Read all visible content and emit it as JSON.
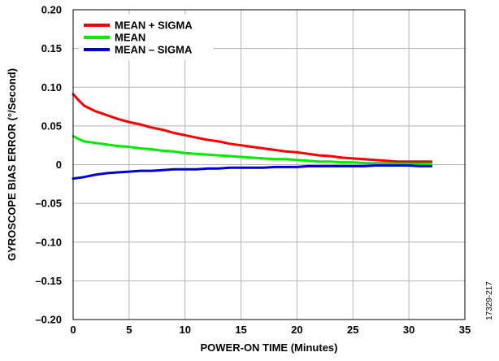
{
  "chart_data": {
    "type": "line",
    "xlabel": "POWER-ON TIME (Minutes)",
    "ylabel": "GYROSCOPE BIAS ERROR (°/Second)",
    "xlim": [
      0,
      35
    ],
    "ylim": [
      -0.2,
      0.2
    ],
    "xticks": [
      0,
      5,
      10,
      15,
      20,
      25,
      30,
      35
    ],
    "yticks": [
      0.2,
      0.15,
      0.1,
      0.05,
      0,
      -0.05,
      -0.1,
      -0.15,
      -0.2
    ],
    "xtick_labels": [
      "0",
      "5",
      "10",
      "15",
      "20",
      "25",
      "30",
      "35"
    ],
    "ytick_labels": [
      "0.20",
      "0.15",
      "0.10",
      "0.05",
      "0",
      "–0.05",
      "–0.10",
      "–0.15",
      "–0.20"
    ],
    "grid": true,
    "legend_position": "top-left",
    "series": [
      {
        "name": "MEAN + SIGMA",
        "color": "#ff0000",
        "x": [
          0,
          0.5,
          1,
          2,
          3,
          4,
          5,
          6,
          7,
          8,
          9,
          10,
          11,
          12,
          13,
          14,
          15,
          16,
          17,
          18,
          19,
          20,
          21,
          22,
          23,
          24,
          25,
          26,
          27,
          28,
          29,
          30,
          31,
          32
        ],
        "y": [
          0.091,
          0.083,
          0.076,
          0.069,
          0.064,
          0.059,
          0.055,
          0.052,
          0.048,
          0.045,
          0.041,
          0.038,
          0.035,
          0.032,
          0.03,
          0.027,
          0.025,
          0.023,
          0.021,
          0.019,
          0.017,
          0.016,
          0.014,
          0.012,
          0.011,
          0.009,
          0.008,
          0.007,
          0.006,
          0.005,
          0.004,
          0.004,
          0.004,
          0.004
        ]
      },
      {
        "name": "MEAN",
        "color": "#00ee00",
        "x": [
          0,
          0.5,
          1,
          2,
          3,
          4,
          5,
          6,
          7,
          8,
          9,
          10,
          11,
          12,
          13,
          14,
          15,
          16,
          17,
          18,
          19,
          20,
          21,
          22,
          23,
          24,
          25,
          26,
          27,
          28,
          29,
          30,
          31,
          32
        ],
        "y": [
          0.037,
          0.033,
          0.03,
          0.028,
          0.026,
          0.024,
          0.023,
          0.021,
          0.02,
          0.018,
          0.017,
          0.015,
          0.014,
          0.013,
          0.012,
          0.011,
          0.01,
          0.009,
          0.008,
          0.007,
          0.007,
          0.006,
          0.005,
          0.004,
          0.004,
          0.003,
          0.003,
          0.002,
          0.002,
          0.002,
          0.001,
          0.001,
          0.001,
          0.001
        ]
      },
      {
        "name": "MEAN – SIGMA",
        "color": "#0000dd",
        "x": [
          0,
          0.5,
          1,
          2,
          3,
          4,
          5,
          6,
          7,
          8,
          9,
          10,
          11,
          12,
          13,
          14,
          15,
          16,
          17,
          18,
          19,
          20,
          21,
          22,
          23,
          24,
          25,
          26,
          27,
          28,
          29,
          30,
          31,
          32
        ],
        "y": [
          -0.018,
          -0.017,
          -0.016,
          -0.013,
          -0.011,
          -0.01,
          -0.009,
          -0.008,
          -0.008,
          -0.007,
          -0.006,
          -0.006,
          -0.006,
          -0.005,
          -0.005,
          -0.004,
          -0.004,
          -0.004,
          -0.004,
          -0.003,
          -0.003,
          -0.003,
          -0.002,
          -0.002,
          -0.002,
          -0.002,
          -0.002,
          -0.002,
          -0.001,
          -0.001,
          -0.001,
          -0.001,
          -0.002,
          -0.002
        ]
      }
    ]
  },
  "figure_id": "17329-217"
}
